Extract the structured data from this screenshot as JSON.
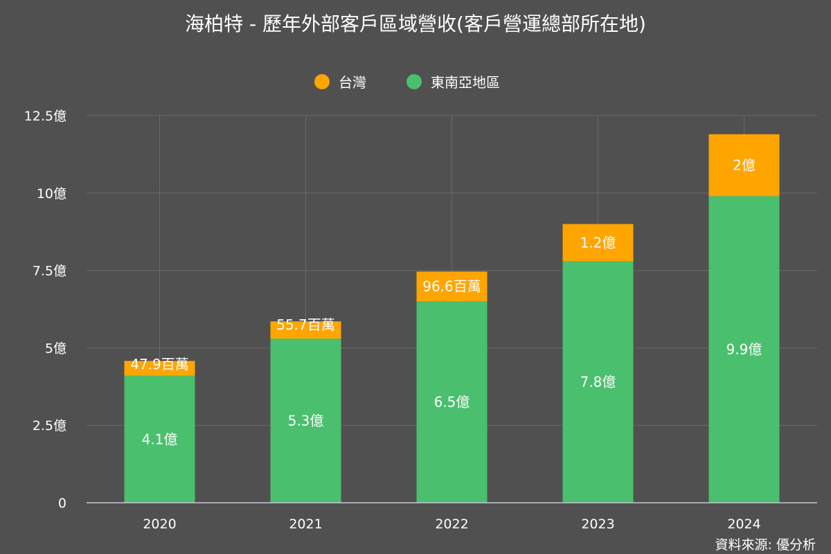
{
  "chart_data": {
    "type": "bar",
    "stacked": true,
    "title": "海柏特 - 歷年外部客戶區域營收(客戶營運總部所在地)",
    "categories": [
      "2020",
      "2021",
      "2022",
      "2023",
      "2024"
    ],
    "series": [
      {
        "name": "東南亞地區",
        "color": "#4abf6e",
        "values": [
          4.1,
          5.3,
          6.5,
          7.8,
          9.9
        ],
        "labels": [
          "4.1億",
          "5.3億",
          "6.5億",
          "7.8億",
          "9.9億"
        ]
      },
      {
        "name": "台灣",
        "color": "#ffa500",
        "values": [
          0.479,
          0.557,
          0.966,
          1.2,
          2.0
        ],
        "labels": [
          "47.9百萬",
          "55.7百萬",
          "96.6百萬",
          "1.2億",
          "2億"
        ]
      }
    ],
    "legend": {
      "position": "top",
      "order": [
        "台灣",
        "東南亞地區"
      ]
    },
    "y_ticks": [
      {
        "value": 0,
        "label": "0"
      },
      {
        "value": 2.5,
        "label": "2.5億"
      },
      {
        "value": 5,
        "label": "5億"
      },
      {
        "value": 7.5,
        "label": "7.5億"
      },
      {
        "value": 10,
        "label": "10億"
      },
      {
        "value": 12.5,
        "label": "12.5億"
      }
    ],
    "ylim": [
      0,
      12.5
    ],
    "grid": true,
    "source": "資料來源: 優分析"
  }
}
